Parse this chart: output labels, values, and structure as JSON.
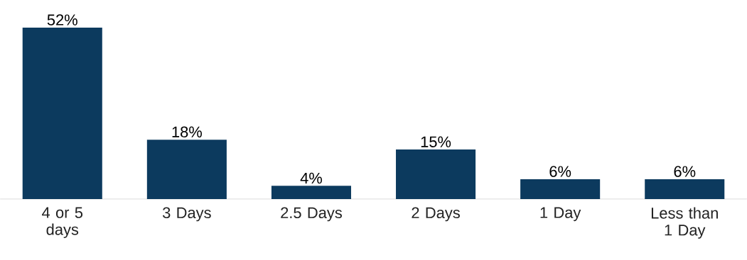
{
  "chart_data": {
    "type": "bar",
    "categories": [
      "4 or 5 days",
      "3 Days",
      "2.5 Days",
      "2 Days",
      "1 Day",
      "Less than 1 Day"
    ],
    "values": [
      52,
      18,
      4,
      15,
      6,
      6
    ],
    "value_labels": [
      "52%",
      "18%",
      "4%",
      "15%",
      "6%",
      "6%"
    ],
    "color": "#0c3a5e"
  }
}
